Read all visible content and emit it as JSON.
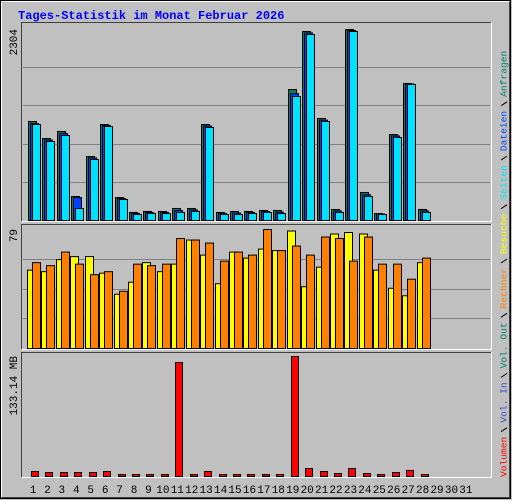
{
  "title": "Tages-Statistik im Monat Februar 2026",
  "chart_data": [
    {
      "type": "bar",
      "ylim": [
        0,
        2304
      ],
      "yticks": [
        2304
      ],
      "series": [
        {
          "name": "Anfragen",
          "color": "#00805c",
          "values": [
            1194,
            989,
            1074,
            290,
            772,
            1158,
            277,
            97,
            109,
            109,
            145,
            145,
            1158,
            97,
            109,
            109,
            121,
            121,
            1580,
            2280,
            1230,
            133,
            2304,
            338,
            84,
            1037,
            1653,
            133,
            null,
            null,
            null
          ]
        },
        {
          "name": "Dateien",
          "color": "#0040ff",
          "values": [
            1170,
            970,
            1050,
            277,
            755,
            1145,
            265,
            85,
            97,
            97,
            121,
            127,
            1140,
            85,
            90,
            97,
            109,
            100,
            1530,
            2262,
            1210,
            115,
            2292,
            310,
            78,
            1020,
            1647,
            115,
            null,
            null,
            null
          ]
        },
        {
          "name": "Seiten",
          "color": "#00e0ff",
          "values": [
            1158,
            953,
            1025,
            145,
            736,
            1134,
            253,
            72,
            84,
            84,
            97,
            109,
            1122,
            72,
            72,
            84,
            97,
            84,
            1496,
            2244,
            1194,
            97,
            2280,
            290,
            72,
            1001,
            1641,
            97,
            null,
            null,
            null
          ]
        }
      ]
    },
    {
      "type": "bar",
      "ylim": [
        0,
        79
      ],
      "yticks": [
        79
      ],
      "series": [
        {
          "name": "Besuche",
          "color": "#ffff00",
          "values": [
            52,
            51,
            59,
            61,
            61,
            50,
            36,
            44,
            57,
            51,
            56,
            72,
            62,
            43,
            64,
            60,
            66,
            65,
            78,
            41,
            54,
            76,
            77,
            76,
            52,
            40,
            35,
            57,
            null,
            null,
            null
          ]
        },
        {
          "name": "Rechner",
          "color": "#ff8000",
          "values": [
            57,
            55,
            64,
            56,
            49,
            51,
            38,
            56,
            55,
            56,
            73,
            72,
            70,
            58,
            64,
            62,
            79,
            65,
            68,
            62,
            74,
            73,
            58,
            74,
            56,
            56,
            46,
            60,
            null,
            null,
            null
          ]
        }
      ]
    },
    {
      "type": "bar",
      "ylim": [
        0,
        133.14
      ],
      "yticks": [
        {
          "value": 133.14,
          "label": "133.14 MB"
        }
      ],
      "categories": [
        "1",
        "2",
        "3",
        "4",
        "5",
        "6",
        "7",
        "8",
        "9",
        "10",
        "11",
        "12",
        "13",
        "14",
        "15",
        "16",
        "17",
        "18",
        "19",
        "20",
        "21",
        "22",
        "23",
        "24",
        "25",
        "26",
        "27",
        "28",
        "29",
        "30",
        "31"
      ],
      "category_colors": [
        "#006050",
        "#000060",
        "#000060",
        "#000060",
        "#000060",
        "#000060",
        "#00a060",
        "#00a060",
        "#000060",
        "#000060",
        "#000060",
        "#000060",
        "#000060",
        "#00a060",
        "#00a060",
        "#000060",
        "#000060",
        "#000060",
        "#000060",
        "#000060",
        "#00a060",
        "#00a060",
        "#000060",
        "#000060",
        "#000060",
        "#000060",
        "#000060",
        "#00a060",
        "#00a060",
        "#000060",
        "#000060"
      ],
      "series": [
        {
          "name": "Volumen",
          "color": "#ff0000",
          "values": [
            5.5,
            4.4,
            4.4,
            4.4,
            4.4,
            5.5,
            2.2,
            2.2,
            2.2,
            2.2,
            126.5,
            2.2,
            5.5,
            2.2,
            2.2,
            2.2,
            2.2,
            2.2,
            133.14,
            8.9,
            5.5,
            3.3,
            8.9,
            3.3,
            2.2,
            4.4,
            6.7,
            2.2,
            null,
            null,
            null
          ]
        },
        {
          "name": "Vol. In",
          "color": "#3050d0"
        },
        {
          "name": "Vol. Out",
          "color": "#00805c"
        }
      ]
    }
  ]
}
